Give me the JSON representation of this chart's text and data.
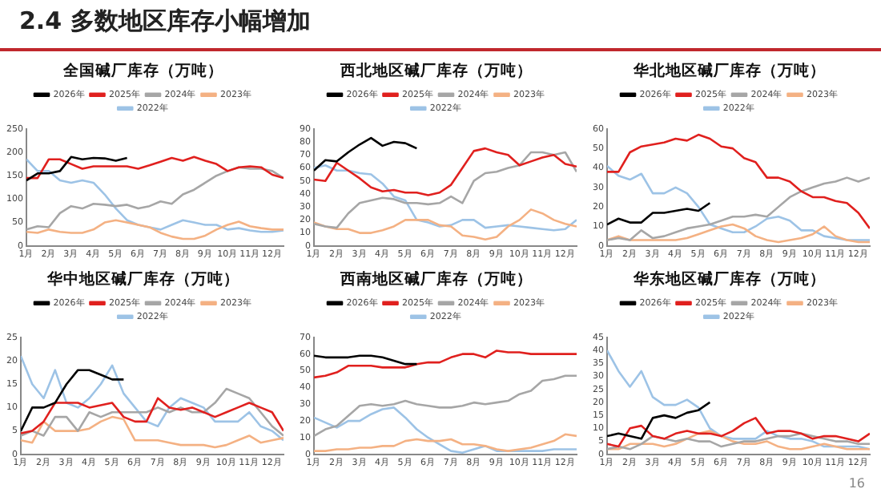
{
  "chart_data": [
    {
      "type": "line",
      "title": "全国碱厂库存（万吨）",
      "annotations": [
        "2.4 多数地区库存小幅增加",
        "16"
      ],
      "x": [
        1,
        1.5,
        2,
        2.5,
        3,
        3.5,
        4,
        4.5,
        5,
        5.5,
        6,
        6.5,
        7,
        7.5,
        8,
        8.5,
        9,
        9.5,
        10,
        10.5,
        11,
        11.5,
        12,
        12.5
      ],
      "xlim": [
        1,
        12.5
      ],
      "xticks": [
        {
          "value": 1,
          "label": "1月"
        },
        {
          "value": 2,
          "label": "2月"
        },
        {
          "value": 3,
          "label": "3月"
        },
        {
          "value": 4,
          "label": "4月"
        },
        {
          "value": 5,
          "label": "5月"
        },
        {
          "value": 6,
          "label": "6月"
        },
        {
          "value": 7,
          "label": "7月"
        },
        {
          "value": 8,
          "label": "8月"
        },
        {
          "value": 9,
          "label": "9月"
        },
        {
          "value": 10,
          "label": "10月"
        },
        {
          "value": 11,
          "label": "11月"
        },
        {
          "value": 12,
          "label": "12月"
        }
      ],
      "ylim": [
        0,
        250
      ],
      "yticks": [
        0,
        50,
        100,
        150,
        200,
        250
      ],
      "legend": "top",
      "marker": "none",
      "line_style": "solid",
      "series": [
        {
          "name": "2026年",
          "color": "#000000",
          "x": [
            1,
            1.5,
            2,
            2.5,
            3,
            3.5,
            4,
            4.5,
            5,
            5.5
          ],
          "values": [
            140,
            155,
            155,
            160,
            190,
            185,
            188,
            187,
            182,
            188
          ]
        },
        {
          "name": "2025年",
          "color": "#e0201e",
          "values": [
            145,
            145,
            185,
            185,
            175,
            165,
            170,
            170,
            170,
            170,
            165,
            172,
            180,
            188,
            182,
            190,
            182,
            175,
            160,
            168,
            170,
            168,
            152,
            145
          ]
        },
        {
          "name": "2024年",
          "color": "#a6a6a6",
          "values": [
            35,
            42,
            40,
            70,
            85,
            80,
            90,
            88,
            85,
            88,
            80,
            85,
            95,
            90,
            110,
            120,
            135,
            150,
            160,
            168,
            165,
            165,
            160,
            145
          ]
        },
        {
          "name": "2023年",
          "color": "#f4b183",
          "values": [
            30,
            28,
            35,
            30,
            28,
            28,
            35,
            50,
            55,
            50,
            45,
            40,
            28,
            20,
            15,
            15,
            22,
            35,
            45,
            52,
            42,
            38,
            35,
            35
          ]
        },
        {
          "name": "2022年",
          "color": "#9dc3e6",
          "values": [
            185,
            160,
            160,
            140,
            135,
            140,
            135,
            110,
            80,
            55,
            45,
            40,
            35,
            45,
            55,
            50,
            45,
            45,
            35,
            38,
            33,
            30,
            30,
            33
          ]
        }
      ]
    },
    {
      "type": "line",
      "title": "西北地区碱厂库存（万吨）",
      "x": [
        1,
        1.5,
        2,
        2.5,
        3,
        3.5,
        4,
        4.5,
        5,
        5.5,
        6,
        6.5,
        7,
        7.5,
        8,
        8.5,
        9,
        9.5,
        10,
        10.5,
        11,
        11.5,
        12,
        12.5
      ],
      "xlim": [
        1,
        12.5
      ],
      "xticks": [
        {
          "value": 1,
          "label": "1月"
        },
        {
          "value": 2,
          "label": "2月"
        },
        {
          "value": 3,
          "label": "3月"
        },
        {
          "value": 4,
          "label": "4月"
        },
        {
          "value": 5,
          "label": "5月"
        },
        {
          "value": 6,
          "label": "6月"
        },
        {
          "value": 7,
          "label": "7月"
        },
        {
          "value": 8,
          "label": "8月"
        },
        {
          "value": 9,
          "label": "9月"
        },
        {
          "value": 10,
          "label": "10月"
        },
        {
          "value": 11,
          "label": "11月"
        },
        {
          "value": 12,
          "label": "12月"
        }
      ],
      "ylim": [
        0,
        90
      ],
      "yticks": [
        0,
        10,
        20,
        30,
        40,
        50,
        60,
        70,
        80,
        90
      ],
      "legend": "top",
      "marker": "none",
      "line_style": "solid",
      "series": [
        {
          "name": "2026年",
          "color": "#000000",
          "x": [
            1,
            1.5,
            2,
            2.5,
            3,
            3.5,
            4,
            4.5,
            5,
            5.5
          ],
          "values": [
            58,
            66,
            65,
            72,
            78,
            83,
            77,
            80,
            79,
            75
          ]
        },
        {
          "name": "2025年",
          "color": "#e0201e",
          "values": [
            51,
            50,
            64,
            58,
            52,
            45,
            42,
            43,
            41,
            41,
            39,
            41,
            47,
            60,
            73,
            75,
            72,
            70,
            62,
            65,
            68,
            70,
            63,
            61
          ]
        },
        {
          "name": "2024年",
          "color": "#a6a6a6",
          "values": [
            17,
            15,
            14,
            25,
            33,
            35,
            37,
            36,
            33,
            33,
            32,
            33,
            38,
            33,
            50,
            56,
            57,
            60,
            62,
            72,
            72,
            70,
            72,
            57
          ]
        },
        {
          "name": "2023年",
          "color": "#f4b183",
          "values": [
            18,
            15,
            13,
            13,
            10,
            10,
            12,
            15,
            20,
            20,
            20,
            16,
            15,
            8,
            7,
            5,
            7,
            15,
            20,
            28,
            25,
            20,
            17,
            15
          ]
        },
        {
          "name": "2022年",
          "color": "#9dc3e6",
          "values": [
            60,
            62,
            58,
            58,
            56,
            55,
            48,
            38,
            35,
            20,
            18,
            15,
            16,
            20,
            20,
            14,
            15,
            16,
            15,
            14,
            13,
            12,
            13,
            20
          ]
        }
      ]
    },
    {
      "type": "line",
      "title": "华北地区碱厂库存（万吨）",
      "x": [
        1,
        1.5,
        2,
        2.5,
        3,
        3.5,
        4,
        4.5,
        5,
        5.5,
        6,
        6.5,
        7,
        7.5,
        8,
        8.5,
        9,
        9.5,
        10,
        10.5,
        11,
        11.5,
        12,
        12.5
      ],
      "xlim": [
        1,
        12.5
      ],
      "xticks": [
        {
          "value": 1,
          "label": "1月"
        },
        {
          "value": 2,
          "label": "2月"
        },
        {
          "value": 3,
          "label": "3月"
        },
        {
          "value": 4,
          "label": "4月"
        },
        {
          "value": 5,
          "label": "5月"
        },
        {
          "value": 6,
          "label": "6月"
        },
        {
          "value": 7,
          "label": "7月"
        },
        {
          "value": 8,
          "label": "8月"
        },
        {
          "value": 9,
          "label": "9月"
        },
        {
          "value": 10,
          "label": "10月"
        },
        {
          "value": 11,
          "label": "11月"
        },
        {
          "value": 12,
          "label": "12月"
        }
      ],
      "ylim": [
        0,
        60
      ],
      "yticks": [
        0,
        10,
        20,
        30,
        40,
        50,
        60
      ],
      "legend": "top",
      "marker": "none",
      "line_style": "solid",
      "series": [
        {
          "name": "2026年",
          "color": "#000000",
          "x": [
            1,
            1.5,
            2,
            2.5,
            3,
            3.5,
            4,
            4.5,
            5,
            5.5
          ],
          "values": [
            11,
            14,
            12,
            12,
            17,
            17,
            18,
            19,
            18,
            22
          ]
        },
        {
          "name": "2025年",
          "color": "#e0201e",
          "values": [
            38,
            38,
            48,
            51,
            52,
            53,
            55,
            54,
            57,
            55,
            51,
            50,
            45,
            43,
            35,
            35,
            33,
            28,
            25,
            25,
            23,
            22,
            17,
            9
          ]
        },
        {
          "name": "2024年",
          "color": "#a6a6a6",
          "values": [
            3,
            4,
            3,
            8,
            4,
            5,
            7,
            9,
            10,
            11,
            13,
            15,
            15,
            16,
            15,
            20,
            25,
            28,
            30,
            32,
            33,
            35,
            33,
            35
          ]
        },
        {
          "name": "2023年",
          "color": "#f4b183",
          "values": [
            3,
            5,
            3,
            3,
            3,
            3,
            3,
            4,
            6,
            8,
            10,
            11,
            9,
            5,
            3,
            2,
            3,
            4,
            6,
            10,
            5,
            3,
            2,
            2
          ]
        },
        {
          "name": "2022年",
          "color": "#9dc3e6",
          "values": [
            41,
            36,
            34,
            37,
            27,
            27,
            30,
            27,
            20,
            11,
            9,
            7,
            7,
            10,
            14,
            15,
            13,
            8,
            8,
            5,
            4,
            3,
            3,
            3
          ]
        }
      ]
    },
    {
      "type": "line",
      "title": "华中地区碱厂库存（万吨）",
      "x": [
        1,
        1.5,
        2,
        2.5,
        3,
        3.5,
        4,
        4.5,
        5,
        5.5,
        6,
        6.5,
        7,
        7.5,
        8,
        8.5,
        9,
        9.5,
        10,
        10.5,
        11,
        11.5,
        12,
        12.5
      ],
      "xlim": [
        1,
        12.5
      ],
      "xticks": [
        {
          "value": 1,
          "label": "1月"
        },
        {
          "value": 2,
          "label": "2月"
        },
        {
          "value": 3,
          "label": "3月"
        },
        {
          "value": 4,
          "label": "4月"
        },
        {
          "value": 5,
          "label": "5月"
        },
        {
          "value": 6,
          "label": "6月"
        },
        {
          "value": 7,
          "label": "7月"
        },
        {
          "value": 8,
          "label": "8月"
        },
        {
          "value": 9,
          "label": "9月"
        },
        {
          "value": 10,
          "label": "10月"
        },
        {
          "value": 11,
          "label": "11月"
        },
        {
          "value": 12,
          "label": "12月"
        }
      ],
      "ylim": [
        0,
        25
      ],
      "yticks": [
        0,
        5,
        10,
        15,
        20,
        25
      ],
      "legend": "top",
      "marker": "none",
      "line_style": "solid",
      "series": [
        {
          "name": "2026年",
          "color": "#000000",
          "x": [
            1,
            1.5,
            2,
            2.5,
            3,
            3.5,
            4,
            4.5,
            5,
            5.5
          ],
          "values": [
            5,
            10,
            10,
            11,
            15,
            18,
            18,
            17,
            16,
            16
          ]
        },
        {
          "name": "2025年",
          "color": "#e0201e",
          "values": [
            4.5,
            5,
            7,
            11,
            11,
            11,
            10,
            10.5,
            11,
            8,
            7,
            7,
            12,
            10,
            9.5,
            10,
            9,
            8,
            9,
            10,
            11,
            10,
            9,
            5
          ]
        },
        {
          "name": "2024年",
          "color": "#a6a6a6",
          "values": [
            4,
            5,
            4,
            8,
            8,
            5,
            9,
            8,
            9,
            9,
            9,
            9,
            10,
            9,
            10,
            9,
            9,
            11,
            14,
            13,
            12,
            9,
            6,
            4
          ]
        },
        {
          "name": "2023年",
          "color": "#f4b183",
          "values": [
            3,
            2.5,
            7,
            5,
            5,
            5,
            5.5,
            7,
            8,
            7.5,
            3,
            3,
            3,
            2.5,
            2,
            2,
            2,
            1.5,
            2,
            3,
            4,
            2.5,
            3,
            3.5
          ]
        },
        {
          "name": "2022年",
          "color": "#9dc3e6",
          "values": [
            21,
            15,
            12,
            18,
            11,
            10,
            12,
            15,
            19,
            13,
            10,
            7,
            6,
            10,
            12,
            11,
            10,
            7,
            7,
            7,
            9,
            6,
            5,
            3
          ]
        }
      ]
    },
    {
      "type": "line",
      "title": "西南地区碱厂库存（万吨）",
      "x": [
        1,
        1.5,
        2,
        2.5,
        3,
        3.5,
        4,
        4.5,
        5,
        5.5,
        6,
        6.5,
        7,
        7.5,
        8,
        8.5,
        9,
        9.5,
        10,
        10.5,
        11,
        11.5,
        12,
        12.5
      ],
      "xlim": [
        1,
        12.5
      ],
      "xticks": [
        {
          "value": 1,
          "label": "1月"
        },
        {
          "value": 2,
          "label": "2月"
        },
        {
          "value": 3,
          "label": "3月"
        },
        {
          "value": 4,
          "label": "4月"
        },
        {
          "value": 5,
          "label": "5月"
        },
        {
          "value": 6,
          "label": "6月"
        },
        {
          "value": 7,
          "label": "7月"
        },
        {
          "value": 8,
          "label": "8月"
        },
        {
          "value": 9,
          "label": "9月"
        },
        {
          "value": 10,
          "label": "10月"
        },
        {
          "value": 11,
          "label": "11月"
        },
        {
          "value": 12,
          "label": "12月"
        }
      ],
      "ylim": [
        0,
        70
      ],
      "yticks": [
        0,
        10,
        20,
        30,
        40,
        50,
        60,
        70
      ],
      "legend": "top",
      "marker": "none",
      "line_style": "solid",
      "series": [
        {
          "name": "2026年",
          "color": "#000000",
          "x": [
            1,
            1.5,
            2,
            2.5,
            3,
            3.5,
            4,
            4.5,
            5,
            5.5
          ],
          "values": [
            59,
            58,
            58,
            58,
            59,
            59,
            58,
            56,
            54,
            54
          ]
        },
        {
          "name": "2025年",
          "color": "#e0201e",
          "values": [
            46,
            47,
            49,
            53,
            53,
            53,
            52,
            52,
            52,
            54,
            55,
            55,
            58,
            60,
            60,
            58,
            62,
            61,
            61,
            60,
            60,
            60,
            60,
            60
          ]
        },
        {
          "name": "2024年",
          "color": "#a6a6a6",
          "values": [
            11,
            15,
            17,
            23,
            29,
            30,
            29,
            30,
            32,
            30,
            29,
            28,
            28,
            29,
            31,
            30,
            31,
            32,
            36,
            38,
            44,
            45,
            47,
            47
          ]
        },
        {
          "name": "2023年",
          "color": "#f4b183",
          "values": [
            2,
            2,
            3,
            3,
            4,
            4,
            5,
            5,
            8,
            9,
            8,
            8,
            9,
            6,
            6,
            5,
            3,
            2,
            3,
            4,
            6,
            8,
            12,
            11
          ]
        },
        {
          "name": "2022年",
          "color": "#9dc3e6",
          "values": [
            22,
            19,
            16,
            20,
            20,
            24,
            27,
            28,
            22,
            15,
            10,
            6,
            2,
            1,
            3,
            5,
            2,
            2,
            2,
            2,
            2,
            3,
            3,
            3
          ]
        }
      ]
    },
    {
      "type": "line",
      "title": "华东地区碱厂库存（万吨）",
      "x": [
        1,
        1.5,
        2,
        2.5,
        3,
        3.5,
        4,
        4.5,
        5,
        5.5,
        6,
        6.5,
        7,
        7.5,
        8,
        8.5,
        9,
        9.5,
        10,
        10.5,
        11,
        11.5,
        12,
        12.5
      ],
      "xlim": [
        1,
        12.5
      ],
      "xticks": [
        {
          "value": 1,
          "label": "1月"
        },
        {
          "value": 2,
          "label": "2月"
        },
        {
          "value": 3,
          "label": "3月"
        },
        {
          "value": 4,
          "label": "4月"
        },
        {
          "value": 5,
          "label": "5月"
        },
        {
          "value": 6,
          "label": "6月"
        },
        {
          "value": 7,
          "label": "7月"
        },
        {
          "value": 8,
          "label": "8月"
        },
        {
          "value": 9,
          "label": "9月"
        },
        {
          "value": 10,
          "label": "10月"
        },
        {
          "value": 11,
          "label": "11月"
        },
        {
          "value": 12,
          "label": "12月"
        }
      ],
      "ylim": [
        0,
        45
      ],
      "yticks": [
        0,
        5,
        10,
        15,
        20,
        25,
        30,
        35,
        40,
        45
      ],
      "legend": "top",
      "marker": "none",
      "line_style": "solid",
      "series": [
        {
          "name": "2026年",
          "color": "#000000",
          "x": [
            1,
            1.5,
            2,
            2.5,
            3,
            3.5,
            4,
            4.5,
            5,
            5.5
          ],
          "values": [
            7,
            8,
            7,
            6,
            14,
            15,
            14,
            16,
            17,
            20
          ]
        },
        {
          "name": "2025年",
          "color": "#e0201e",
          "values": [
            4,
            3,
            10,
            11,
            7,
            6,
            8,
            9,
            8,
            8,
            7,
            9,
            12,
            14,
            8,
            9,
            9,
            8,
            6,
            7,
            7,
            6,
            5,
            8
          ]
        },
        {
          "name": "2024年",
          "color": "#a6a6a6",
          "values": [
            2,
            3,
            2,
            4,
            7,
            6,
            5,
            6,
            5,
            5,
            3,
            4,
            5,
            5,
            6,
            7,
            7,
            8,
            7,
            6,
            5,
            5,
            4,
            4
          ]
        },
        {
          "name": "2023年",
          "color": "#f4b183",
          "values": [
            2,
            2,
            4,
            4,
            4,
            3,
            4,
            6,
            8,
            9,
            7,
            5,
            4,
            4,
            5,
            3,
            2,
            2,
            3,
            4,
            3,
            2,
            2,
            2
          ]
        },
        {
          "name": "2022年",
          "color": "#9dc3e6",
          "values": [
            40,
            32,
            26,
            32,
            22,
            19,
            19,
            21,
            18,
            10,
            7,
            6,
            6,
            6,
            9,
            7,
            6,
            6,
            5,
            3,
            3,
            3,
            3,
            2
          ]
        }
      ]
    }
  ]
}
